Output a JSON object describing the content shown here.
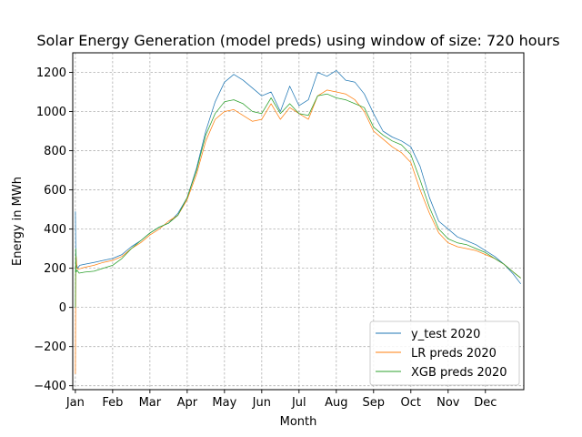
{
  "chart_data": {
    "type": "line",
    "title": "Solar Energy Generation (model preds) using window of size: 720 hours",
    "xlabel": "Month",
    "ylabel": "Energy in MWh",
    "x_unit": "month",
    "xlim": [
      0.93,
      13.03
    ],
    "ylim": [
      -420,
      1300
    ],
    "x_ticks": [
      {
        "label": "Jan",
        "value": 1
      },
      {
        "label": "Feb",
        "value": 2
      },
      {
        "label": "Mar",
        "value": 3
      },
      {
        "label": "Apr",
        "value": 4
      },
      {
        "label": "May",
        "value": 5
      },
      {
        "label": "Jun",
        "value": 6
      },
      {
        "label": "Jul",
        "value": 7
      },
      {
        "label": "Aug",
        "value": 8
      },
      {
        "label": "Sep",
        "value": 9
      },
      {
        "label": "Oct",
        "value": 10
      },
      {
        "label": "Nov",
        "value": 11
      },
      {
        "label": "Dec",
        "value": 12
      }
    ],
    "y_ticks": [
      -400,
      -200,
      0,
      200,
      400,
      600,
      800,
      1000,
      1200
    ],
    "grid": true,
    "legend_position": "lower-right",
    "series": [
      {
        "name": "y_test 2020",
        "color": "#1f77b4",
        "x": [
          1.0,
          1.01,
          1.03,
          1.06,
          1.12,
          1.25,
          1.5,
          1.75,
          2.0,
          2.25,
          2.5,
          2.75,
          3.0,
          3.25,
          3.5,
          3.75,
          4.0,
          4.25,
          4.5,
          4.75,
          5.0,
          5.25,
          5.5,
          5.75,
          6.0,
          6.25,
          6.5,
          6.75,
          7.0,
          7.25,
          7.5,
          7.75,
          8.0,
          8.25,
          8.5,
          8.75,
          9.0,
          9.25,
          9.5,
          9.75,
          10.0,
          10.25,
          10.5,
          10.75,
          11.0,
          11.25,
          11.5,
          11.75,
          12.0,
          12.25,
          12.5,
          12.75,
          12.95
        ],
        "y": [
          490,
          300,
          220,
          200,
          215,
          220,
          230,
          240,
          250,
          270,
          310,
          340,
          380,
          410,
          430,
          480,
          560,
          710,
          900,
          1050,
          1150,
          1190,
          1160,
          1120,
          1080,
          1100,
          1000,
          1130,
          1030,
          1060,
          1200,
          1180,
          1210,
          1160,
          1150,
          1090,
          990,
          900,
          870,
          850,
          820,
          720,
          560,
          440,
          400,
          360,
          340,
          320,
          290,
          260,
          220,
          170,
          120
        ]
      },
      {
        "name": "LR preds 2020",
        "color": "#ff7f0e",
        "x": [
          1.0,
          1.01,
          1.02,
          1.04,
          1.08,
          1.25,
          1.5,
          1.75,
          2.0,
          2.25,
          2.5,
          2.75,
          3.0,
          3.25,
          3.5,
          3.75,
          4.0,
          4.25,
          4.5,
          4.75,
          5.0,
          5.25,
          5.5,
          5.75,
          6.0,
          6.25,
          6.5,
          6.75,
          7.0,
          7.25,
          7.5,
          7.75,
          8.0,
          8.25,
          8.5,
          8.75,
          9.0,
          9.25,
          9.5,
          9.75,
          10.0,
          10.25,
          10.5,
          10.75,
          11.0,
          11.25,
          11.5,
          11.75,
          12.0,
          12.25,
          12.5,
          12.75,
          12.95
        ],
        "y": [
          -340,
          150,
          260,
          200,
          195,
          205,
          215,
          230,
          240,
          260,
          300,
          330,
          370,
          400,
          440,
          470,
          550,
          680,
          850,
          960,
          1000,
          1010,
          980,
          950,
          960,
          1040,
          960,
          1020,
          990,
          960,
          1080,
          1110,
          1100,
          1090,
          1060,
          1000,
          900,
          860,
          820,
          790,
          740,
          600,
          480,
          380,
          330,
          310,
          300,
          290,
          270,
          250,
          220,
          180,
          150
        ]
      },
      {
        "name": "XGB preds 2020",
        "color": "#2ca02c",
        "x": [
          1.0,
          1.01,
          1.02,
          1.05,
          1.1,
          1.25,
          1.5,
          1.75,
          2.0,
          2.25,
          2.5,
          2.75,
          3.0,
          3.25,
          3.5,
          3.75,
          4.0,
          4.25,
          4.5,
          4.75,
          5.0,
          5.25,
          5.5,
          5.75,
          6.0,
          6.25,
          6.5,
          6.75,
          7.0,
          7.25,
          7.5,
          7.75,
          8.0,
          8.25,
          8.5,
          8.75,
          9.0,
          9.25,
          9.5,
          9.75,
          10.0,
          10.25,
          10.5,
          10.75,
          11.0,
          11.25,
          11.5,
          11.75,
          12.0,
          12.25,
          12.5,
          12.75,
          12.95
        ],
        "y": [
          0,
          300,
          180,
          190,
          175,
          180,
          185,
          200,
          215,
          250,
          300,
          340,
          380,
          410,
          430,
          470,
          560,
          700,
          880,
          990,
          1050,
          1060,
          1040,
          1000,
          990,
          1070,
          990,
          1040,
          990,
          980,
          1080,
          1090,
          1070,
          1060,
          1040,
          1020,
          920,
          880,
          850,
          830,
          780,
          650,
          510,
          400,
          350,
          330,
          320,
          300,
          280,
          250,
          220,
          180,
          150
        ]
      }
    ]
  }
}
